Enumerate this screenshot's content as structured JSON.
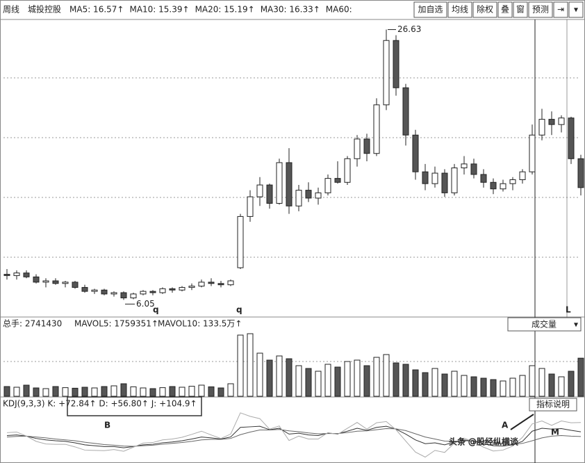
{
  "toolbar": {
    "period": "周线",
    "stock": "城投控股",
    "ma_labels": [
      "MA5: 16.57↑",
      "MA10: 15.39↑",
      "MA20: 15.19↑",
      "MA30: 16.33↑",
      "MA60: "
    ],
    "buttons": [
      "加自选",
      "均线",
      "除权",
      "叠",
      "窗",
      "预测",
      "⇥",
      "▾"
    ]
  },
  "volume_header": {
    "items": [
      "总手: 2741430",
      "MAVOL5: 1759351↑",
      "MAVOL10: 133.5万↑"
    ],
    "selector": "成交量",
    "arrow": "▾"
  },
  "kdj_header": {
    "items": [
      "KDJ(9,3,3) K: +72.84↑ D: +56.80↑ J: +104.9↑"
    ],
    "button": "指标说明"
  },
  "annotations": {
    "markers": [
      "q",
      "q",
      "L"
    ],
    "letters": [
      "A",
      "B",
      "M"
    ]
  },
  "watermark": "头条 @股经纵横谈",
  "chart_data": [
    {
      "type": "candlestick",
      "ylim": [
        4.8,
        27.4
      ],
      "open": [
        8.0,
        7.9,
        8.1,
        7.8,
        7.4,
        7.5,
        7.3,
        7.4,
        7.0,
        6.7,
        6.8,
        6.5,
        6.6,
        6.2,
        6.5,
        6.7,
        6.6,
        6.9,
        6.8,
        7.0,
        7.1,
        7.4,
        7.3,
        7.2,
        8.5,
        12.4,
        13.9,
        14.8,
        13.4,
        16.5,
        13.2,
        14.4,
        13.8,
        14.2,
        15.3,
        15.0,
        16.8,
        18.3,
        17.2,
        20.9,
        25.8,
        22.2,
        18.6,
        15.8,
        14.9,
        15.7,
        14.2,
        16.1,
        16.4,
        15.6,
        15.0,
        14.5,
        14.9,
        15.2,
        15.8,
        18.6,
        19.8,
        19.4,
        19.9,
        16.8
      ],
      "high": [
        8.4,
        8.3,
        8.3,
        8.0,
        7.7,
        7.7,
        7.5,
        7.5,
        7.2,
        6.9,
        6.9,
        6.7,
        6.7,
        6.6,
        6.8,
        6.8,
        7.0,
        7.0,
        7.1,
        7.3,
        7.6,
        7.7,
        7.5,
        7.6,
        12.6,
        14.4,
        15.4,
        14.9,
        16.8,
        17.6,
        14.8,
        15.0,
        14.6,
        15.6,
        16.6,
        17.0,
        18.6,
        18.7,
        21.4,
        26.63,
        26.2,
        22.5,
        19.0,
        16.4,
        16.2,
        16.0,
        16.4,
        17.0,
        16.8,
        16.0,
        15.3,
        15.2,
        15.4,
        16.0,
        19.4,
        20.6,
        20.4,
        20.1,
        20.0,
        17.1
      ],
      "low": [
        7.6,
        7.6,
        7.7,
        7.3,
        7.0,
        7.2,
        7.0,
        6.9,
        6.6,
        6.5,
        6.4,
        6.3,
        6.05,
        6.1,
        6.4,
        6.4,
        6.5,
        6.6,
        6.7,
        6.8,
        7.0,
        7.1,
        7.0,
        7.1,
        8.4,
        12.0,
        13.2,
        13.0,
        13.3,
        12.6,
        12.8,
        13.5,
        13.3,
        14.0,
        14.9,
        14.8,
        16.2,
        16.6,
        17.0,
        20.5,
        21.6,
        17.8,
        15.2,
        14.4,
        14.6,
        13.9,
        14.0,
        15.6,
        15.3,
        14.6,
        14.1,
        14.3,
        14.4,
        14.9,
        15.6,
        18.2,
        18.6,
        18.8,
        16.4,
        14.0
      ],
      "close": [
        7.9,
        8.1,
        7.8,
        7.4,
        7.5,
        7.3,
        7.4,
        7.0,
        6.7,
        6.8,
        6.5,
        6.6,
        6.2,
        6.5,
        6.7,
        6.6,
        6.9,
        6.8,
        7.0,
        7.1,
        7.4,
        7.3,
        7.2,
        7.5,
        12.4,
        13.9,
        14.8,
        13.4,
        16.5,
        13.2,
        14.4,
        13.8,
        14.2,
        15.3,
        15.0,
        16.8,
        18.3,
        17.2,
        20.9,
        25.8,
        22.2,
        18.6,
        15.8,
        14.9,
        15.7,
        14.2,
        16.1,
        16.4,
        15.6,
        15.0,
        14.5,
        14.9,
        15.2,
        15.8,
        18.6,
        19.8,
        19.4,
        19.9,
        16.8,
        14.6
      ]
    },
    {
      "type": "bar",
      "ylim": [
        0,
        4650000
      ],
      "values": [
        700000,
        650000,
        800000,
        600000,
        550000,
        700000,
        620000,
        580000,
        650000,
        600000,
        700000,
        750000,
        900000,
        680000,
        600000,
        550000,
        620000,
        700000,
        650000,
        720000,
        800000,
        680000,
        600000,
        900000,
        4400000,
        4500000,
        3100000,
        2600000,
        2900000,
        2700000,
        2200000,
        2000000,
        1800000,
        2300000,
        2100000,
        2500000,
        2600000,
        2200000,
        2800000,
        3000000,
        2400000,
        2300000,
        1900000,
        1700000,
        2000000,
        1600000,
        1800000,
        1500000,
        1400000,
        1300000,
        1200000,
        1100000,
        1300000,
        1500000,
        2200000,
        2000000,
        1600000,
        1400000,
        1800000,
        2741430
      ]
    },
    {
      "type": "line",
      "ylim": [
        -20,
        140
      ],
      "series": [
        {
          "name": "K",
          "color": "#333333",
          "values": [
            60,
            62,
            58,
            50,
            45,
            42,
            40,
            35,
            28,
            25,
            22,
            22,
            18,
            22,
            28,
            30,
            35,
            38,
            42,
            48,
            55,
            52,
            48,
            55,
            88,
            90,
            92,
            80,
            85,
            65,
            68,
            62,
            60,
            68,
            66,
            75,
            85,
            78,
            88,
            92,
            82,
            65,
            45,
            32,
            35,
            28,
            38,
            45,
            40,
            32,
            25,
            24,
            28,
            40,
            75,
            85,
            82,
            84,
            78,
            72.84
          ]
        },
        {
          "name": "D",
          "color": "#666666",
          "values": [
            55,
            57,
            58,
            55,
            52,
            48,
            45,
            42,
            37,
            33,
            29,
            27,
            24,
            23,
            25,
            27,
            30,
            33,
            36,
            40,
            45,
            47,
            47,
            50,
            63,
            72,
            79,
            79,
            81,
            76,
            73,
            69,
            66,
            67,
            67,
            70,
            75,
            76,
            80,
            84,
            83,
            77,
            66,
            55,
            48,
            41,
            40,
            42,
            41,
            38,
            34,
            31,
            30,
            33,
            42,
            52,
            58,
            60,
            58,
            56.8
          ]
        },
        {
          "name": "J",
          "color": "#aaaaaa",
          "values": [
            70,
            72,
            58,
            40,
            31,
            30,
            30,
            21,
            10,
            9,
            8,
            12,
            6,
            20,
            34,
            36,
            45,
            48,
            54,
            64,
            75,
            62,
            50,
            65,
            138,
            126,
            118,
            82,
            93,
            43,
            58,
            48,
            48,
            70,
            64,
            85,
            105,
            82,
            104,
            108,
            80,
            41,
            3,
            -14,
            9,
            2,
            34,
            51,
            38,
            20,
            7,
            10,
            24,
            54,
            100,
            110,
            95,
            110,
            104,
            104.9
          ]
        }
      ]
    }
  ]
}
